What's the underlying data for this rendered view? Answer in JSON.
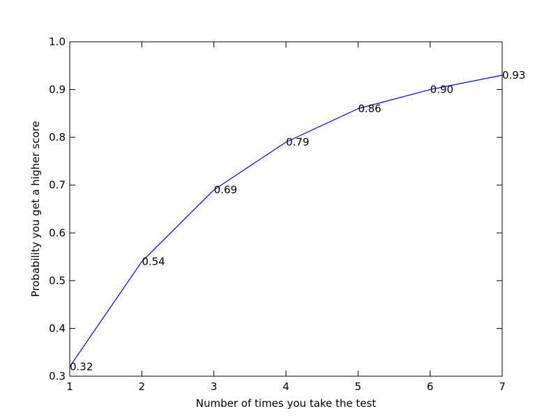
{
  "chart_data": {
    "type": "line",
    "title": "",
    "xlabel": "Number of times you take the test",
    "ylabel": "Probability you get a higher score",
    "xlim": [
      1,
      7
    ],
    "ylim": [
      0.3,
      1.0
    ],
    "grid": false,
    "x": [
      1,
      2,
      3,
      4,
      5,
      6,
      7
    ],
    "series": [
      {
        "color": "#0000ff",
        "values": [
          0.32,
          0.54,
          0.69,
          0.79,
          0.86,
          0.9,
          0.93
        ]
      }
    ],
    "data_labels": [
      "0.32",
      "0.54",
      "0.69",
      "0.79",
      "0.86",
      "0.90",
      "0.93"
    ],
    "x_ticks": [
      1,
      2,
      3,
      4,
      5,
      6,
      7
    ],
    "x_tick_labels": [
      "1",
      "2",
      "3",
      "4",
      "5",
      "6",
      "7"
    ],
    "y_ticks": [
      0.3,
      0.4,
      0.5,
      0.6,
      0.7,
      0.8,
      0.9,
      1.0
    ],
    "y_tick_labels": [
      "0.3",
      "0.4",
      "0.5",
      "0.6",
      "0.7",
      "0.8",
      "0.9",
      "1.0"
    ]
  }
}
